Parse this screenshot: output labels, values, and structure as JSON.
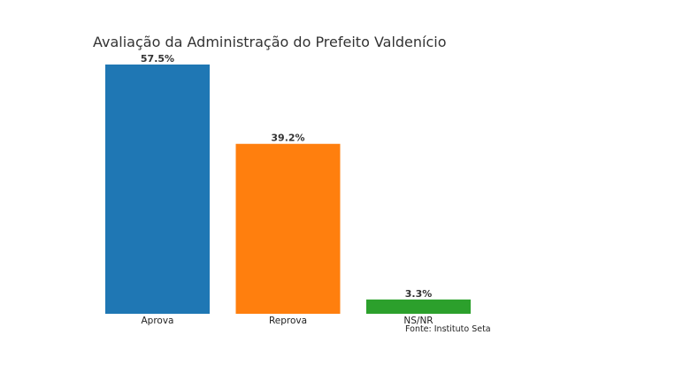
{
  "chart_data": {
    "type": "bar",
    "title": "Avaliação da Administração do Prefeito Valdenício",
    "categories": [
      "Aprova",
      "Reprova",
      "NS/NR"
    ],
    "values": [
      57.5,
      39.2,
      3.3
    ],
    "value_labels": [
      "57.5%",
      "39.2%",
      "3.3%"
    ],
    "colors": [
      "#1f77b4",
      "#ff7f0e",
      "#2ca02c"
    ],
    "xlabel": "",
    "ylabel": "",
    "ylim": [
      0,
      57.5
    ],
    "grid": false,
    "source": "Fonte: Instituto Seta"
  }
}
